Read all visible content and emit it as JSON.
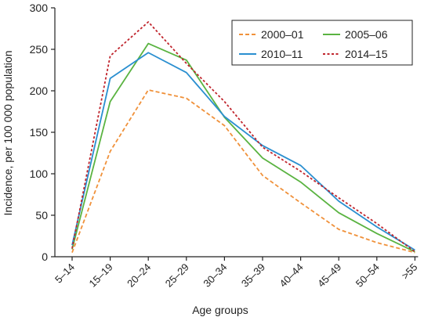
{
  "chart_data": {
    "type": "line",
    "title": "",
    "xlabel": "Age groups",
    "ylabel": "Incidence, per 100 000 population",
    "categories": [
      "5–14",
      "15–19",
      "20–24",
      "25–29",
      "30–34",
      "35–39",
      "40–44",
      "45–49",
      "50–54",
      ">55"
    ],
    "ylim": [
      0,
      300
    ],
    "yticks": [
      0,
      50,
      100,
      150,
      200,
      250,
      300
    ],
    "legend_position": "top-right",
    "series": [
      {
        "name": "2000–01",
        "color": "#f0913a",
        "dash": "dashed",
        "values": [
          5,
          127,
          201,
          191,
          158,
          98,
          65,
          33,
          17,
          5
        ]
      },
      {
        "name": "2005–06",
        "color": "#5ab341",
        "dash": "solid",
        "values": [
          9,
          187,
          257,
          237,
          168,
          119,
          90,
          53,
          28,
          6
        ]
      },
      {
        "name": "2010–11",
        "color": "#2a8fd0",
        "dash": "solid",
        "values": [
          14,
          215,
          246,
          222,
          169,
          134,
          110,
          67,
          36,
          8
        ]
      },
      {
        "name": "2014–15",
        "color": "#c0252d",
        "dash": "dotted",
        "values": [
          10,
          242,
          283,
          233,
          187,
          132,
          103,
          71,
          40,
          6
        ]
      }
    ]
  }
}
